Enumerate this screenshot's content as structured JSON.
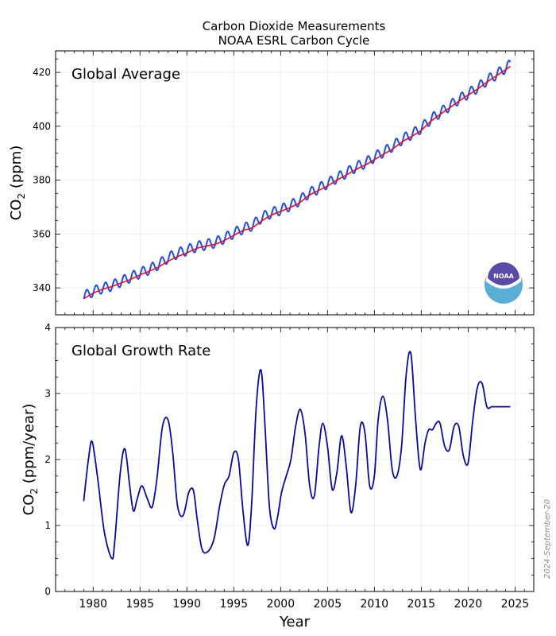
{
  "figure": {
    "title_line1": "Carbon Dioxide Measurements",
    "title_line2": "NOAA ESRL Carbon Cycle",
    "date_stamp": "2024-September-20",
    "logo_text": "NOAA",
    "colors": {
      "monthly": "#1f4fe0",
      "trend": "#e8101c",
      "growth": "#0a0a9a",
      "grid": "#e8e8e8",
      "logo_ring": "#5aaed6",
      "logo_dome": "#5a4aa8"
    }
  },
  "chart_data": [
    {
      "type": "line",
      "panel": "top",
      "annotation": "Global Average",
      "xlabel": "",
      "ylabel_main": "CO",
      "ylabel_sub": "2",
      "ylabel_rest": " (ppm)",
      "xlim": [
        1976,
        2027
      ],
      "ylim": [
        330,
        428
      ],
      "yticks": [
        340,
        360,
        380,
        400,
        420
      ],
      "grid": true,
      "series": [
        {
          "role": "monthly",
          "x_start": 1979.0,
          "x_end": 2024.5,
          "seasonal_amplitude_ppm": 1.9,
          "values_annual": {
            "x": [
              1979,
              1980,
              1981,
              1982,
              1983,
              1984,
              1985,
              1986,
              1987,
              1988,
              1989,
              1990,
              1991,
              1992,
              1993,
              1994,
              1995,
              1996,
              1997,
              1998,
              1999,
              2000,
              2001,
              2002,
              2003,
              2004,
              2005,
              2006,
              2007,
              2008,
              2009,
              2010,
              2011,
              2012,
              2013,
              2014,
              2015,
              2016,
              2017,
              2018,
              2019,
              2020,
              2021,
              2022,
              2023,
              2024.5
            ],
            "y": [
              336.8,
              338.7,
              339.9,
              340.8,
              342.4,
              344.0,
              345.5,
              346.9,
              348.7,
              351.2,
              352.8,
              354.0,
              355.3,
              356.0,
              356.8,
              358.4,
              360.3,
              362.0,
              363.2,
              366.2,
              367.8,
              369.0,
              370.5,
              372.4,
              375.1,
              376.8,
              378.8,
              380.8,
              382.7,
              384.8,
              386.3,
              388.6,
              390.5,
              392.7,
              395.2,
              397.1,
              399.3,
              402.6,
              405.0,
              407.5,
              410.0,
              412.1,
              414.3,
              417.0,
              419.2,
              422.9
            ]
          }
        },
        {
          "role": "trend",
          "x": [
            1979,
            1980,
            1981,
            1982,
            1983,
            1984,
            1985,
            1986,
            1987,
            1988,
            1989,
            1990,
            1991,
            1992,
            1993,
            1994,
            1995,
            1996,
            1997,
            1998,
            1999,
            2000,
            2001,
            2002,
            2003,
            2004,
            2005,
            2006,
            2007,
            2008,
            2009,
            2010,
            2011,
            2012,
            2013,
            2014,
            2015,
            2016,
            2017,
            2018,
            2019,
            2020,
            2021,
            2022,
            2023,
            2024.5
          ],
          "y": [
            336.0,
            338.0,
            339.5,
            340.5,
            341.8,
            343.2,
            344.8,
            346.2,
            347.8,
            349.9,
            351.6,
            353.0,
            354.6,
            355.5,
            356.2,
            357.6,
            359.5,
            361.3,
            362.4,
            364.9,
            367.0,
            368.4,
            369.8,
            371.6,
            374.3,
            376.1,
            377.8,
            380.0,
            381.9,
            383.9,
            385.6,
            387.6,
            389.7,
            391.7,
            394.3,
            396.3,
            398.5,
            401.8,
            404.4,
            406.8,
            409.3,
            411.6,
            413.8,
            416.4,
            418.7,
            422.2
          ]
        }
      ]
    },
    {
      "type": "line",
      "panel": "bottom",
      "annotation": "Global Growth Rate",
      "xlabel": "Year",
      "ylabel_main": "CO",
      "ylabel_sub": "2",
      "ylabel_rest": " (ppm/year)",
      "xlim": [
        1976,
        2027
      ],
      "ylim": [
        0,
        4
      ],
      "yticks": [
        0,
        1,
        2,
        3,
        4
      ],
      "xticks": [
        1980,
        1985,
        1990,
        1995,
        2000,
        2005,
        2010,
        2015,
        2020,
        2025
      ],
      "grid": true,
      "series": [
        {
          "role": "growth",
          "x": [
            1979.0,
            1979.5,
            1979.9,
            1980.5,
            1981.2,
            1982.0,
            1982.3,
            1982.9,
            1983.4,
            1983.9,
            1984.3,
            1984.7,
            1985.2,
            1985.8,
            1986.3,
            1986.8,
            1987.4,
            1988.0,
            1988.5,
            1989.0,
            1989.6,
            1990.2,
            1990.7,
            1991.1,
            1991.6,
            1992.2,
            1992.9,
            1993.5,
            1994.0,
            1994.5,
            1995.0,
            1995.5,
            1996.0,
            1996.5,
            1996.9,
            1997.4,
            1997.9,
            1998.3,
            1998.8,
            1999.3,
            1999.7,
            2000.1,
            2000.6,
            2001.1,
            2001.6,
            2002.1,
            2002.6,
            2003.1,
            2003.6,
            2004.1,
            2004.5,
            2005.0,
            2005.5,
            2006.0,
            2006.5,
            2007.0,
            2007.5,
            2008.0,
            2008.5,
            2009.0,
            2009.5,
            2010.0,
            2010.4,
            2010.9,
            2011.4,
            2011.9,
            2012.4,
            2012.9,
            2013.4,
            2013.9,
            2014.4,
            2014.9,
            2015.4,
            2015.8,
            2016.2,
            2016.6,
            2017.0,
            2017.5,
            2018.0,
            2018.5,
            2019.0,
            2019.5,
            2020.0,
            2020.5,
            2021.0,
            2021.5,
            2022.0,
            2022.5,
            2023.0,
            2023.5,
            2024.0,
            2024.3,
            2024.5
          ],
          "y": [
            1.37,
            2.0,
            2.27,
            1.7,
            0.9,
            0.5,
            0.75,
            1.8,
            2.16,
            1.6,
            1.22,
            1.4,
            1.6,
            1.4,
            1.28,
            1.7,
            2.5,
            2.6,
            2.1,
            1.3,
            1.15,
            1.5,
            1.53,
            1.1,
            0.65,
            0.6,
            0.8,
            1.3,
            1.62,
            1.75,
            2.1,
            2.0,
            1.2,
            0.7,
            1.3,
            2.8,
            3.36,
            2.6,
            1.3,
            0.95,
            1.15,
            1.5,
            1.75,
            2.0,
            2.5,
            2.76,
            2.4,
            1.6,
            1.45,
            2.2,
            2.55,
            2.2,
            1.55,
            1.8,
            2.36,
            1.9,
            1.2,
            1.6,
            2.5,
            2.4,
            1.6,
            1.75,
            2.6,
            2.96,
            2.6,
            1.85,
            1.75,
            2.2,
            3.3,
            3.6,
            2.6,
            1.85,
            2.25,
            2.45,
            2.45,
            2.55,
            2.55,
            2.2,
            2.15,
            2.5,
            2.5,
            2.05,
            1.95,
            2.6,
            3.1,
            3.15,
            2.8,
            2.8,
            2.8,
            2.8,
            2.8,
            2.8,
            2.8
          ]
        }
      ]
    }
  ]
}
